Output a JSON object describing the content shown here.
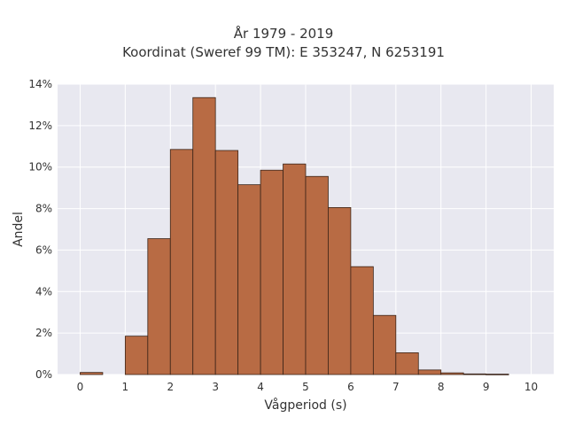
{
  "chart_data": {
    "type": "bar",
    "title_lines": [
      "År 1979 - 2019",
      "Koordinat (Sweref 99 TM): E 353247, N 6253191"
    ],
    "xlabel": "Vågperiod (s)",
    "ylabel": "Andel",
    "xlim": [
      -0.5,
      10.5
    ],
    "ylim": [
      0,
      14
    ],
    "x_ticks": [
      "0",
      "1",
      "2",
      "3",
      "4",
      "5",
      "6",
      "7",
      "8",
      "9",
      "10"
    ],
    "y_ticks": [
      "0%",
      "2%",
      "4%",
      "6%",
      "8%",
      "10%",
      "12%",
      "14%"
    ],
    "bin_width": 0.5,
    "bins": [
      {
        "x0": 0.0,
        "x1": 0.5,
        "value": 0.1
      },
      {
        "x0": 0.5,
        "x1": 1.0,
        "value": 0.0
      },
      {
        "x0": 1.0,
        "x1": 1.5,
        "value": 1.85
      },
      {
        "x0": 1.5,
        "x1": 2.0,
        "value": 6.55
      },
      {
        "x0": 2.0,
        "x1": 2.5,
        "value": 10.85
      },
      {
        "x0": 2.5,
        "x1": 3.0,
        "value": 13.35
      },
      {
        "x0": 3.0,
        "x1": 3.5,
        "value": 10.8
      },
      {
        "x0": 3.5,
        "x1": 4.0,
        "value": 9.15
      },
      {
        "x0": 4.0,
        "x1": 4.5,
        "value": 9.85
      },
      {
        "x0": 4.5,
        "x1": 5.0,
        "value": 10.15
      },
      {
        "x0": 5.0,
        "x1": 5.5,
        "value": 9.55
      },
      {
        "x0": 5.5,
        "x1": 6.0,
        "value": 8.05
      },
      {
        "x0": 6.0,
        "x1": 6.5,
        "value": 5.2
      },
      {
        "x0": 6.5,
        "x1": 7.0,
        "value": 2.85
      },
      {
        "x0": 7.0,
        "x1": 7.5,
        "value": 1.05
      },
      {
        "x0": 7.5,
        "x1": 8.0,
        "value": 0.22
      },
      {
        "x0": 8.0,
        "x1": 8.5,
        "value": 0.08
      },
      {
        "x0": 8.5,
        "x1": 9.0,
        "value": 0.03
      },
      {
        "x0": 9.0,
        "x1": 9.5,
        "value": 0.02
      }
    ],
    "grid": true,
    "colors": {
      "bar_fill": "#b86b44",
      "bar_stroke": "#3b2418",
      "plot_background": "#e8e8f0",
      "grid": "#ffffff",
      "text": "#333333"
    }
  }
}
